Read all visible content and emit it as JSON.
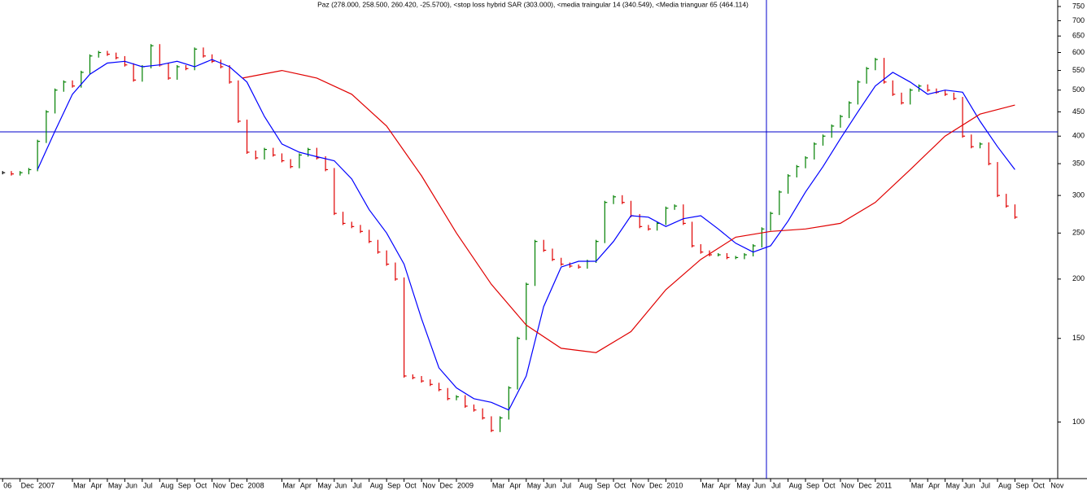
{
  "chart_data": {
    "type": "stock",
    "title": "Paz (278.000, 258.500, 260.420, -25.5700), <stop loss hybrid SAR (303.000), <media traingular 14 (340.549), <Media trianguar  65 (464.114)",
    "log_scale": true,
    "up_color": "#008000",
    "down_color": "#e00000",
    "first_color": "#000000",
    "xlim": [
      -0.15,
      60.45
    ],
    "ylim": [
      76,
      774
    ],
    "x": [
      0,
      0.5,
      1,
      1.5,
      2,
      2.5,
      3,
      3.5,
      4,
      4.5,
      5,
      5.5,
      6,
      6.5,
      7,
      7.5,
      8,
      8.5,
      9,
      9.5,
      10,
      10.5,
      11,
      11.5,
      12,
      12.5,
      13,
      13.5,
      14,
      14.5,
      15,
      15.5,
      16,
      16.5,
      17,
      17.5,
      18,
      18.5,
      19,
      19.5,
      20,
      20.5,
      21,
      21.5,
      22,
      22.5,
      23,
      23.5,
      24,
      24.5,
      25,
      25.5,
      26,
      26.5,
      27,
      27.5,
      28,
      28.5,
      29,
      29.5,
      30,
      30.5,
      31,
      31.5,
      32,
      32.5,
      33,
      33.5,
      34,
      34.5,
      35,
      35.5,
      36,
      36.5,
      37,
      37.5,
      38,
      38.5,
      39,
      39.5,
      40,
      40.5,
      41,
      41.5,
      42,
      42.5,
      43,
      43.5,
      44,
      44.5,
      45,
      45.5,
      46,
      46.5,
      47,
      47.5,
      48,
      48.5,
      49,
      49.5,
      50,
      50.5,
      51,
      51.5,
      52,
      52.5,
      53,
      53.5,
      54,
      54.5,
      55,
      55.5,
      56,
      56.5,
      57,
      57.5,
      58
    ],
    "values": [
      335,
      333,
      335,
      340,
      390,
      450,
      500,
      520,
      510,
      545,
      590,
      600,
      595,
      585,
      565,
      525,
      560,
      620,
      565,
      530,
      560,
      555,
      610,
      590,
      575,
      560,
      520,
      430,
      370,
      360,
      375,
      365,
      355,
      345,
      365,
      375,
      360,
      340,
      275,
      262,
      258,
      252,
      240,
      228,
      215,
      200,
      125,
      124,
      122,
      120,
      117,
      112,
      113,
      108,
      106,
      102,
      96,
      102,
      118,
      150,
      195,
      240,
      230,
      220,
      215,
      213,
      212,
      218,
      240,
      290,
      298,
      290,
      272,
      258,
      255,
      262,
      282,
      285,
      262,
      235,
      228,
      225,
      225,
      222,
      222,
      225,
      235,
      255,
      275,
      305,
      330,
      345,
      360,
      385,
      400,
      420,
      440,
      470,
      520,
      555,
      580,
      520,
      490,
      470,
      500,
      510,
      500,
      495,
      490,
      480,
      400,
      380,
      385,
      350,
      300,
      285,
      270
    ],
    "series": [
      {
        "color": "#0000ff",
        "x": [
          2,
          3,
          4,
          5,
          6,
          7,
          8,
          9,
          10,
          11,
          12,
          13,
          14,
          15,
          16,
          17,
          18,
          19,
          20,
          21,
          22,
          23,
          24,
          25,
          26,
          27,
          28,
          29,
          30,
          31,
          32,
          33,
          34,
          35,
          36,
          37,
          38,
          39,
          40,
          41,
          42,
          43,
          44,
          45,
          46,
          47,
          48,
          49,
          50,
          51,
          52,
          53,
          54,
          55,
          56,
          57,
          58
        ],
        "values": [
          340,
          410,
          490,
          540,
          570,
          575,
          560,
          565,
          575,
          560,
          580,
          560,
          520,
          440,
          385,
          370,
          362,
          355,
          325,
          280,
          250,
          215,
          165,
          130,
          118,
          112,
          110,
          106,
          125,
          175,
          212,
          218,
          218,
          240,
          272,
          270,
          258,
          268,
          272,
          255,
          238,
          228,
          235,
          265,
          305,
          345,
          395,
          450,
          510,
          545,
          520,
          490,
          500,
          495,
          430,
          380,
          340
        ]
      },
      {
        "color": "#e00000",
        "x": [
          13.75,
          16,
          18,
          20,
          22,
          24,
          26,
          28,
          30,
          32,
          34,
          36,
          38,
          40,
          42,
          44,
          46,
          48,
          50,
          52,
          54,
          56,
          58
        ],
        "values": [
          530,
          550,
          530,
          490,
          420,
          330,
          250,
          195,
          160,
          143,
          140,
          155,
          190,
          220,
          245,
          252,
          255,
          262,
          290,
          340,
          400,
          445,
          465
        ]
      }
    ],
    "xticks": [
      {
        "value": 0,
        "label": "06"
      },
      {
        "value": 1,
        "label": "Dec"
      },
      {
        "value": 2,
        "label": "2007"
      },
      {
        "value": 4,
        "label": "Mar"
      },
      {
        "value": 5,
        "label": "Apr"
      },
      {
        "value": 6,
        "label": "May"
      },
      {
        "value": 7,
        "label": "Jun"
      },
      {
        "value": 8,
        "label": "Jul"
      },
      {
        "value": 9,
        "label": "Aug"
      },
      {
        "value": 10,
        "label": "Sep"
      },
      {
        "value": 11,
        "label": "Oct"
      },
      {
        "value": 12,
        "label": "Nov"
      },
      {
        "value": 13,
        "label": "Dec"
      },
      {
        "value": 14,
        "label": "2008"
      },
      {
        "value": 16,
        "label": "Mar"
      },
      {
        "value": 17,
        "label": "Apr"
      },
      {
        "value": 18,
        "label": "May"
      },
      {
        "value": 19,
        "label": "Jun"
      },
      {
        "value": 20,
        "label": "Jul"
      },
      {
        "value": 21,
        "label": "Aug"
      },
      {
        "value": 22,
        "label": "Sep"
      },
      {
        "value": 23,
        "label": "Oct"
      },
      {
        "value": 24,
        "label": "Nov"
      },
      {
        "value": 25,
        "label": "Dec"
      },
      {
        "value": 26,
        "label": "2009"
      },
      {
        "value": 28,
        "label": "Mar"
      },
      {
        "value": 29,
        "label": "Apr"
      },
      {
        "value": 30,
        "label": "May"
      },
      {
        "value": 31,
        "label": "Jun"
      },
      {
        "value": 32,
        "label": "Jul"
      },
      {
        "value": 33,
        "label": "Aug"
      },
      {
        "value": 34,
        "label": "Sep"
      },
      {
        "value": 35,
        "label": "Oct"
      },
      {
        "value": 36,
        "label": "Nov"
      },
      {
        "value": 37,
        "label": "Dec"
      },
      {
        "value": 38,
        "label": "2010"
      },
      {
        "value": 40,
        "label": "Mar"
      },
      {
        "value": 41,
        "label": "Apr"
      },
      {
        "value": 42,
        "label": "May"
      },
      {
        "value": 43,
        "label": "Jun"
      },
      {
        "value": 44,
        "label": "Jul"
      },
      {
        "value": 45,
        "label": "Aug"
      },
      {
        "value": 46,
        "label": "Sep"
      },
      {
        "value": 47,
        "label": "Oct"
      },
      {
        "value": 48,
        "label": "Nov"
      },
      {
        "value": 49,
        "label": "Dec"
      },
      {
        "value": 50,
        "label": "2011"
      },
      {
        "value": 52,
        "label": "Mar"
      },
      {
        "value": 53,
        "label": "Apr"
      },
      {
        "value": 54,
        "label": "May"
      },
      {
        "value": 55,
        "label": "Jun"
      },
      {
        "value": 56,
        "label": "Jul"
      },
      {
        "value": 57,
        "label": "Aug"
      },
      {
        "value": 58,
        "label": "Sep"
      },
      {
        "value": 59,
        "label": "Oct"
      },
      {
        "value": 60,
        "label": "Nov"
      }
    ],
    "yticks": [
      750,
      700,
      650,
      600,
      550,
      500,
      450,
      400,
      350,
      300,
      250,
      200,
      150,
      100
    ]
  }
}
